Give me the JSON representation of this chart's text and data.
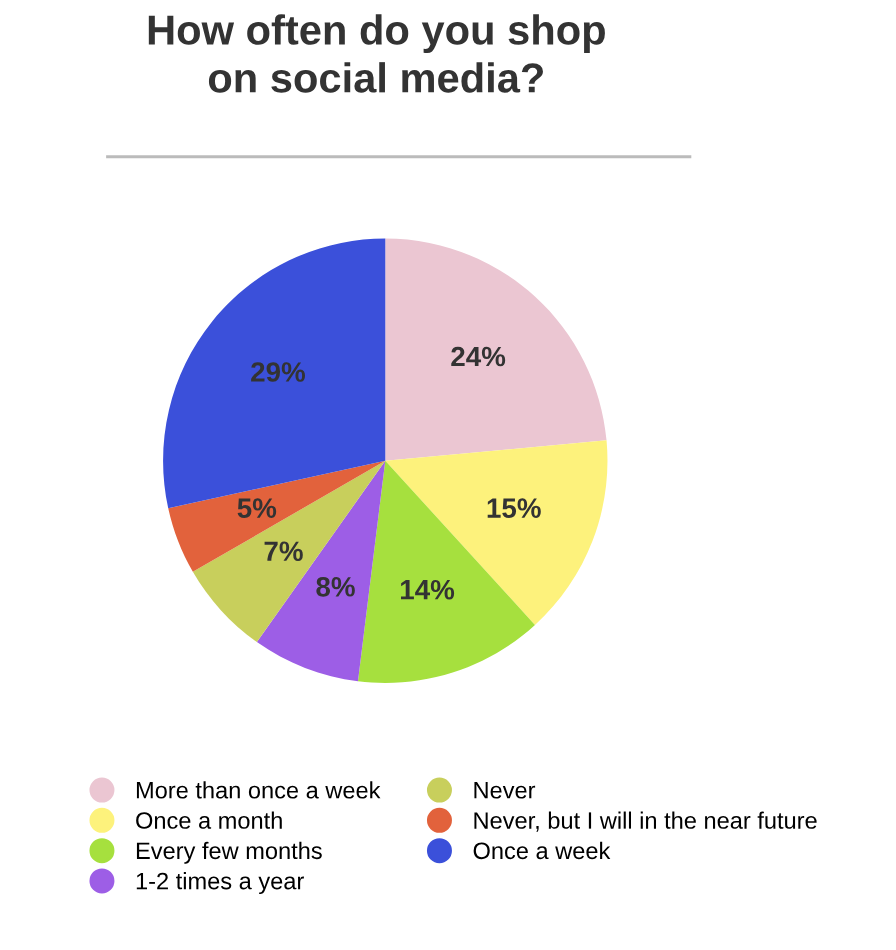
{
  "chart_data": {
    "type": "pie",
    "title": "How often do you shop on social media?",
    "categories": [
      "More than once a week",
      "Once a month",
      "Every few months",
      "1-2 times a year",
      "Never",
      "Never, but I will in the near future",
      "Once a week"
    ],
    "values": [
      24,
      15,
      14,
      8,
      7,
      5,
      29
    ],
    "value_labels": [
      "24%",
      "15%",
      "14%",
      "8%",
      "7%",
      "5%",
      "29%"
    ],
    "colors": [
      "#ebc6d2",
      "#fdf27c",
      "#a6e03e",
      "#9d5ee6",
      "#c8cf5c",
      "#e2623c",
      "#3b50da"
    ],
    "legend": "bottom"
  }
}
